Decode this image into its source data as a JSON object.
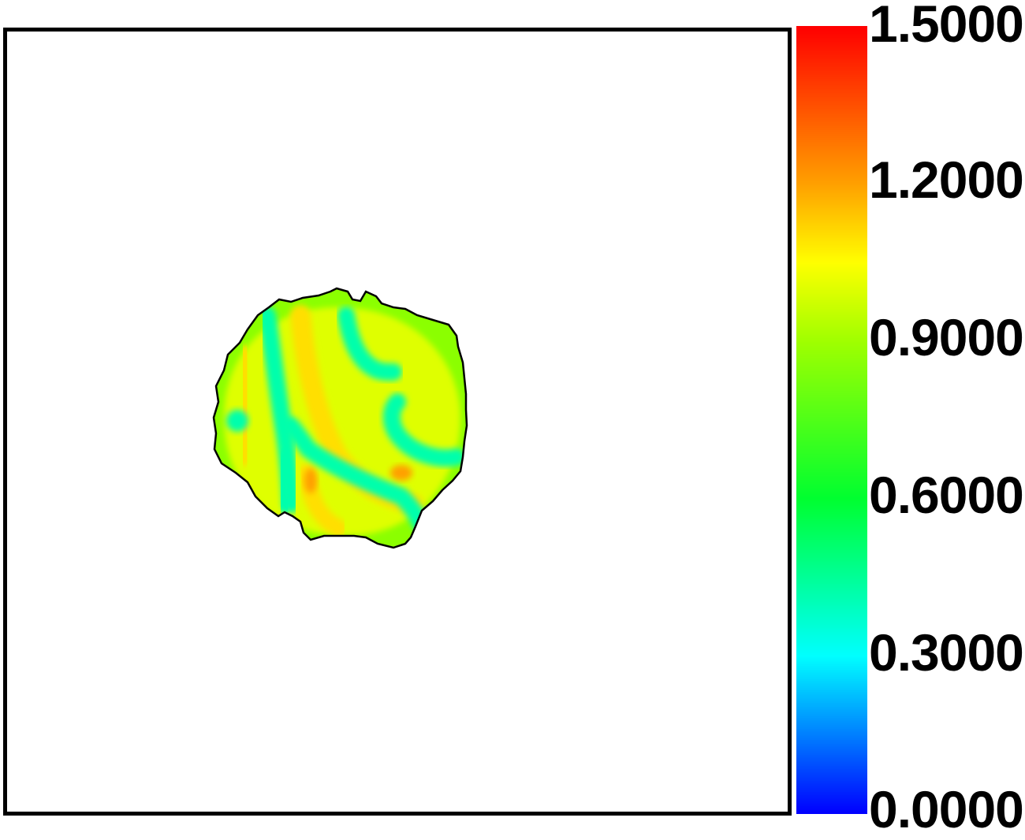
{
  "chart_data": {
    "type": "heatmap",
    "title": "",
    "xlabel": "",
    "ylabel": "",
    "colormap": "rainbow (blue-cyan-green-yellow-red)",
    "colorbar": {
      "min": 0.0,
      "max": 1.5,
      "tick_values": [
        1.5,
        1.2,
        0.9,
        0.6,
        0.3,
        0.0
      ],
      "tick_labels": [
        "1.5000",
        "1.2000",
        "0.9000",
        "0.6000",
        "0.3000",
        "0.0000"
      ],
      "colors": {
        "0.0": "#0000ff",
        "0.3": "#00ffff",
        "0.6": "#00ff30",
        "0.9": "#a0ff00",
        "1.05": "#ffff00",
        "1.2": "#ffa000",
        "1.5": "#ff0000"
      }
    },
    "field": {
      "description_values": {
        "background_value": 1.0,
        "stripe_value": 0.42,
        "peak_value": 1.2
      }
    }
  }
}
